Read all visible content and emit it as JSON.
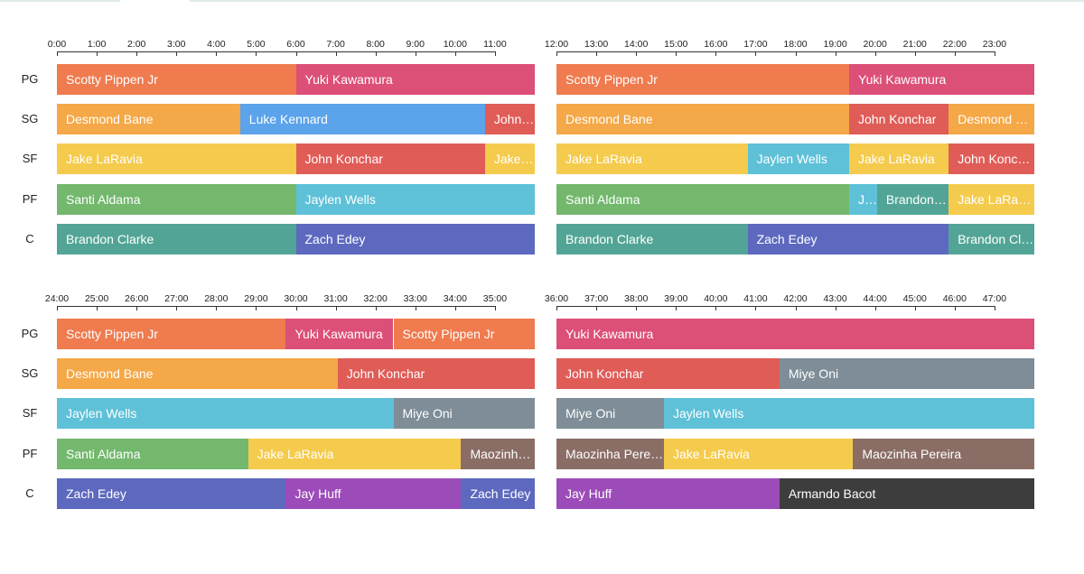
{
  "chart_data": {
    "type": "timeline",
    "colors": {
      "Scotty Pippen Jr": "#ef7b4f",
      "Yuki Kawamura": "#dc4f77",
      "Desmond Bane": "#f4a847",
      "Luke Kennard": "#5ba3ea",
      "John Konchar": "#e05c57",
      "Jake LaRavia": "#f5cb4d",
      "Jaylen Wells": "#5ec1d8",
      "Santi Aldama": "#73b86d",
      "Brandon Clarke": "#52a596",
      "Zach Edey": "#5d69bf",
      "Miye Oni": "#7e8d98",
      "Maozinha Pereira": "#8a6e66",
      "Jay Huff": "#9c4cb9",
      "Armando Bacot": "#3d3d3d"
    },
    "positions": [
      "PG",
      "SG",
      "SF",
      "PF",
      "C"
    ],
    "panels": [
      {
        "ticks": [
          "0:00",
          "1:00",
          "2:00",
          "3:00",
          "4:00",
          "5:00",
          "6:00",
          "7:00",
          "8:00",
          "9:00",
          "10:00",
          "11:00"
        ],
        "range": [
          0,
          12
        ],
        "rows": [
          [
            {
              "player": "Scotty Pippen Jr",
              "start": 0,
              "end": 6
            },
            {
              "player": "Yuki Kawamura",
              "start": 6,
              "end": 12
            }
          ],
          [
            {
              "player": "Desmond Bane",
              "start": 0,
              "end": 4.6
            },
            {
              "player": "Luke Kennard",
              "start": 4.6,
              "end": 10.75
            },
            {
              "player": "John Konchar",
              "start": 10.75,
              "end": 12
            }
          ],
          [
            {
              "player": "Jake LaRavia",
              "start": 0,
              "end": 6
            },
            {
              "player": "John Konchar",
              "start": 6,
              "end": 10.75
            },
            {
              "player": "Jake LaRavia",
              "start": 10.75,
              "end": 12
            }
          ],
          [
            {
              "player": "Santi Aldama",
              "start": 0,
              "end": 6
            },
            {
              "player": "Jaylen Wells",
              "start": 6,
              "end": 12
            }
          ],
          [
            {
              "player": "Brandon Clarke",
              "start": 0,
              "end": 6
            },
            {
              "player": "Zach Edey",
              "start": 6,
              "end": 12
            }
          ]
        ]
      },
      {
        "ticks": [
          "12:00",
          "13:00",
          "14:00",
          "15:00",
          "16:00",
          "17:00",
          "18:00",
          "19:00",
          "20:00",
          "21:00",
          "22:00",
          "23:00"
        ],
        "range": [
          12,
          24
        ],
        "rows": [
          [
            {
              "player": "Scotty Pippen Jr",
              "start": 12,
              "end": 19.35
            },
            {
              "player": "Yuki Kawamura",
              "start": 19.35,
              "end": 24
            }
          ],
          [
            {
              "player": "Desmond Bane",
              "start": 12,
              "end": 19.35
            },
            {
              "player": "John Konchar",
              "start": 19.35,
              "end": 21.85
            },
            {
              "player": "Desmond Bane",
              "start": 21.85,
              "end": 24
            }
          ],
          [
            {
              "player": "Jake LaRavia",
              "start": 12,
              "end": 16.8
            },
            {
              "player": "Jaylen Wells",
              "start": 16.8,
              "end": 19.35
            },
            {
              "player": "Jake LaRavia",
              "start": 19.35,
              "end": 21.85
            },
            {
              "player": "John Konchar",
              "start": 21.85,
              "end": 24
            }
          ],
          [
            {
              "player": "Santi Aldama",
              "start": 12,
              "end": 19.35
            },
            {
              "player": "Jaylen Wells",
              "start": 19.35,
              "end": 20.05
            },
            {
              "player": "Brandon Clarke",
              "start": 20.05,
              "end": 21.85
            },
            {
              "player": "Jake LaRavia",
              "start": 21.85,
              "end": 24
            }
          ],
          [
            {
              "player": "Brandon Clarke",
              "start": 12,
              "end": 16.8
            },
            {
              "player": "Zach Edey",
              "start": 16.8,
              "end": 21.85
            },
            {
              "player": "Brandon Clarke",
              "start": 21.85,
              "end": 24
            }
          ]
        ]
      },
      {
        "ticks": [
          "24:00",
          "25:00",
          "26:00",
          "27:00",
          "28:00",
          "29:00",
          "30:00",
          "31:00",
          "32:00",
          "33:00",
          "34:00",
          "35:00"
        ],
        "range": [
          24,
          36
        ],
        "rows": [
          [
            {
              "player": "Scotty Pippen Jr",
              "start": 24,
              "end": 29.75
            },
            {
              "player": "Yuki Kawamura",
              "start": 29.75,
              "end": 32.45
            },
            {
              "player": "Scotty Pippen Jr",
              "start": 32.45,
              "end": 36
            }
          ],
          [
            {
              "player": "Desmond Bane",
              "start": 24,
              "end": 31.05
            },
            {
              "player": "John Konchar",
              "start": 31.05,
              "end": 36
            }
          ],
          [
            {
              "player": "Jaylen Wells",
              "start": 24,
              "end": 32.45
            },
            {
              "player": "Miye Oni",
              "start": 32.45,
              "end": 36
            }
          ],
          [
            {
              "player": "Santi Aldama",
              "start": 24,
              "end": 28.8
            },
            {
              "player": "Jake LaRavia",
              "start": 28.8,
              "end": 34.15
            },
            {
              "player": "Maozinha Pereira",
              "start": 34.15,
              "end": 36
            }
          ],
          [
            {
              "player": "Zach Edey",
              "start": 24,
              "end": 29.75
            },
            {
              "player": "Jay Huff",
              "start": 29.75,
              "end": 34.15
            },
            {
              "player": "Zach Edey",
              "start": 34.15,
              "end": 36
            }
          ]
        ]
      },
      {
        "ticks": [
          "36:00",
          "37:00",
          "38:00",
          "39:00",
          "40:00",
          "41:00",
          "42:00",
          "43:00",
          "44:00",
          "45:00",
          "46:00",
          "47:00"
        ],
        "range": [
          36,
          48
        ],
        "rows": [
          [
            {
              "player": "Yuki Kawamura",
              "start": 36,
              "end": 48
            }
          ],
          [
            {
              "player": "John Konchar",
              "start": 36,
              "end": 41.6
            },
            {
              "player": "Miye Oni",
              "start": 41.6,
              "end": 48
            }
          ],
          [
            {
              "player": "Miye Oni",
              "start": 36,
              "end": 38.7
            },
            {
              "player": "Jaylen Wells",
              "start": 38.7,
              "end": 48
            }
          ],
          [
            {
              "player": "Maozinha Pereira",
              "start": 36,
              "end": 38.7
            },
            {
              "player": "Jake LaRavia",
              "start": 38.7,
              "end": 43.45
            },
            {
              "player": "Maozinha Pereira",
              "start": 43.45,
              "end": 48
            }
          ],
          [
            {
              "player": "Jay Huff",
              "start": 36,
              "end": 41.6
            },
            {
              "player": "Armando Bacot",
              "start": 41.6,
              "end": 48
            }
          ]
        ]
      }
    ]
  }
}
